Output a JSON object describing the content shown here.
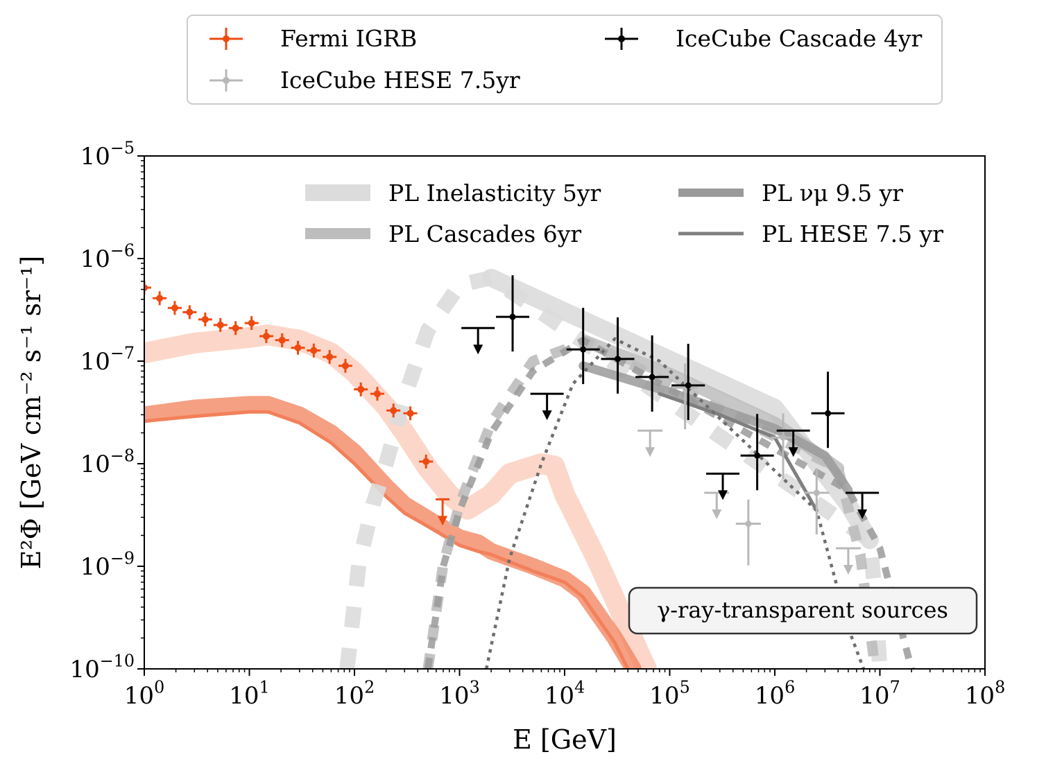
{
  "chart_data": {
    "type": "line",
    "xscale": "log",
    "yscale": "log",
    "xlabel": "E [GeV]",
    "ylabel": "E²Φ [GeV cm⁻² s⁻¹ sr⁻¹]",
    "xlim": [
      1,
      100000000
    ],
    "ylim": [
      1e-10,
      1e-05
    ],
    "x_ticks": [
      {
        "base": "10",
        "exp": "0"
      },
      {
        "base": "10",
        "exp": "1"
      },
      {
        "base": "10",
        "exp": "2"
      },
      {
        "base": "10",
        "exp": "3"
      },
      {
        "base": "10",
        "exp": "4"
      },
      {
        "base": "10",
        "exp": "5"
      },
      {
        "base": "10",
        "exp": "6"
      },
      {
        "base": "10",
        "exp": "7"
      },
      {
        "base": "10",
        "exp": "8"
      }
    ],
    "y_ticks": [
      {
        "base": "10",
        "exp": "−10"
      },
      {
        "base": "10",
        "exp": "−9"
      },
      {
        "base": "10",
        "exp": "−8"
      },
      {
        "base": "10",
        "exp": "−7"
      },
      {
        "base": "10",
        "exp": "−6"
      },
      {
        "base": "10",
        "exp": "−5"
      }
    ],
    "annotation": "γ-ray-transparent sources",
    "colors": {
      "fermi": "#ee4a10",
      "hese_points": "#b8b8b8",
      "cascade_points": "#000000",
      "pl_inelasticity": "#dcdcdc",
      "pl_cascades": "#bdbdbd",
      "pl_numu": "#9a9a9a",
      "pl_hese": "#7f7f7f",
      "nu_dotted": "#6e6e6e",
      "gamma_dark": "#f2805a",
      "gamma_light": "#fcd0c0"
    },
    "outer_legend": [
      {
        "label": "Fermi IGRB",
        "color": "#ee4a10"
      },
      {
        "label": "IceCube Cascade 4yr",
        "color": "#000000"
      },
      {
        "label": "IceCube HESE 7.5yr",
        "color": "#b8b8b8"
      }
    ],
    "inner_legend": [
      {
        "label": "PL Inelasticity 5yr",
        "color": "#dcdcdc"
      },
      {
        "label": "PL νμ 9.5 yr",
        "color": "#9a9a9a"
      },
      {
        "label": "PL Cascades 6yr",
        "color": "#bdbdbd"
      },
      {
        "label": "PL HESE 7.5 yr",
        "color": "#7f7f7f"
      }
    ],
    "series": [
      {
        "name": "Fermi IGRB",
        "kind": "points",
        "x": [
          1.0,
          1.4,
          1.95,
          2.7,
          3.8,
          5.3,
          7.4,
          10.5,
          14.5,
          20.5,
          29,
          41,
          58,
          82,
          115,
          165,
          235,
          340,
          480,
          690
        ],
        "y": [
          5.2e-07,
          4.1e-07,
          3.3e-07,
          3e-07,
          2.55e-07,
          2.25e-07,
          2.1e-07,
          2.35e-07,
          1.75e-07,
          1.6e-07,
          1.35e-07,
          1.27e-07,
          1.1e-07,
          9e-08,
          5.3e-08,
          4.8e-08,
          3.3e-08,
          3.1e-08,
          1.05e-08,
          4.5e-09
        ],
        "upper_limit": [
          false,
          false,
          false,
          false,
          false,
          false,
          false,
          false,
          false,
          false,
          false,
          false,
          false,
          false,
          false,
          false,
          false,
          false,
          false,
          true
        ]
      },
      {
        "name": "IceCube Cascade 4yr",
        "kind": "points",
        "x": [
          1500,
          3200,
          6800,
          15000,
          32000,
          68000,
          150000,
          320000,
          680000,
          1500000,
          3200000,
          6800000
        ],
        "y": [
          2.1e-07,
          2.7e-07,
          4.8e-08,
          1.3e-07,
          1.05e-07,
          7e-08,
          5.8e-08,
          8e-09,
          1.2e-08,
          2.1e-08,
          3.1e-08,
          5.2e-09
        ],
        "upper_limit": [
          true,
          false,
          true,
          false,
          false,
          false,
          false,
          true,
          false,
          true,
          false,
          true
        ]
      },
      {
        "name": "IceCube HESE 7.5yr",
        "kind": "points",
        "x": [
          65000,
          140000,
          280000,
          560000,
          1200000,
          2500000,
          5000000
        ],
        "y": [
          2.1e-08,
          5.5e-08,
          5.2e-09,
          2.6e-09,
          1.8e-08,
          5.2e-09,
          1.5e-09
        ],
        "upper_limit": [
          true,
          false,
          true,
          false,
          false,
          false,
          true
        ]
      },
      {
        "name": "PL Inelasticity 5yr",
        "kind": "band",
        "style": "solid",
        "x": [
          2000,
          1000000,
          5000000,
          8000000
        ],
        "y": [
          6.5e-07,
          3.5e-08,
          4e-09,
          1.8e-09
        ]
      },
      {
        "name": "PL Inelasticity 5yr (extrapolated)",
        "kind": "band",
        "style": "dashed",
        "x": [
          85,
          110,
          150,
          200,
          300,
          500,
          1000,
          2000,
          8000000,
          9000000,
          10000000
        ],
        "y": [
          1e-10,
          1.05e-09,
          4e-09,
          1e-08,
          4.5e-08,
          2e-07,
          5.5e-07,
          6.5e-07,
          1.8e-09,
          5.5e-10,
          1e-10
        ]
      },
      {
        "name": "PL Cascades 6yr",
        "kind": "band",
        "style": "solid",
        "x": [
          16000,
          100000,
          1000000,
          4000000
        ],
        "y": [
          1.55e-07,
          7.5e-08,
          2.5e-08,
          9e-09
        ]
      },
      {
        "name": "PL Cascades 6yr (extrapolated)",
        "kind": "band",
        "style": "dashed",
        "x": [
          500,
          700,
          1000,
          2000,
          5000,
          16000,
          4000000,
          6500000,
          9000000
        ],
        "y": [
          1e-10,
          1.05e-09,
          4e-09,
          2.5e-08,
          1e-07,
          1.55e-07,
          9e-09,
          1.3e-09,
          1e-10
        ]
      },
      {
        "name": "PL νμ 9.5 yr",
        "kind": "band",
        "style": "solid",
        "x": [
          15000,
          100000,
          1000000,
          3000000,
          5000000
        ],
        "y": [
          9e-08,
          5e-08,
          2.2e-08,
          1.2e-08,
          5.5e-09
        ]
      },
      {
        "name": "PL νμ 9.5 yr (extrapolated)",
        "kind": "band",
        "style": "dashed",
        "x": [
          500,
          700,
          1000,
          2000,
          5000,
          15000,
          5000000,
          10000000,
          20000000
        ],
        "y": [
          1e-10,
          1e-09,
          3.5e-09,
          2e-08,
          8e-08,
          1.6e-07,
          5.5e-09,
          1.5e-09,
          1e-10
        ]
      },
      {
        "name": "PL HESE 7.5 yr",
        "kind": "line",
        "style": "solid",
        "x": [
          80000,
          300000,
          1000000,
          2500000
        ],
        "y": [
          4.8e-08,
          3e-08,
          1.8e-08,
          3.5e-09
        ]
      },
      {
        "name": "PL HESE 7.5 yr (extrapolated)",
        "kind": "line",
        "style": "dotted",
        "x": [
          1800,
          3000,
          6000,
          12000,
          30000,
          80000,
          2500000,
          5000000,
          7000000
        ],
        "y": [
          1e-10,
          1.2e-09,
          1e-08,
          6e-08,
          1.65e-07,
          1e-07,
          3.5e-09,
          2.5e-10,
          1e-10
        ]
      },
      {
        "name": "Gamma-ray cascade (dark band)",
        "kind": "band",
        "style": "solid",
        "x": [
          1,
          3,
          10,
          15,
          30,
          60,
          100,
          200,
          300,
          600,
          1000,
          1500,
          2000,
          5000,
          10000,
          15000,
          30000,
          45000
        ],
        "y": [
          3e-08,
          3.5e-08,
          3.8e-08,
          3.8e-08,
          3e-08,
          2e-08,
          1.3e-08,
          6e-09,
          4e-09,
          2.6e-09,
          1.9e-09,
          1.7e-09,
          1.4e-09,
          1e-09,
          7.5e-10,
          5.5e-10,
          2e-10,
          1e-10
        ]
      },
      {
        "name": "Gamma-ray cascade (dark line)",
        "kind": "line",
        "style": "solid",
        "x": [
          1,
          3,
          10,
          15,
          30,
          60,
          100,
          200,
          300,
          600,
          1000,
          1500,
          2000,
          5000,
          10000,
          15000,
          30000,
          40000
        ],
        "y": [
          2.6e-08,
          2.9e-08,
          3.2e-08,
          3.2e-08,
          2.5e-08,
          1.6e-08,
          1e-08,
          4.8e-09,
          3.3e-09,
          2.2e-09,
          1.6e-09,
          1.4e-09,
          1.3e-09,
          9e-10,
          7e-10,
          5e-10,
          1.8e-10,
          1e-10
        ]
      },
      {
        "name": "Gamma-ray cascade (light band)",
        "kind": "band",
        "style": "solid",
        "x": [
          1,
          3,
          10,
          15,
          30,
          60,
          100,
          200,
          300,
          500,
          800,
          1200,
          2000,
          3000,
          6000,
          8000,
          10000,
          20000,
          40000,
          60000
        ],
        "y": [
          1.2e-07,
          1.5e-07,
          1.7e-07,
          1.8e-07,
          1.6e-07,
          1.2e-07,
          7.8e-08,
          3.6e-08,
          2e-08,
          9e-09,
          5e-09,
          3.6e-09,
          5e-09,
          8e-09,
          1e-08,
          9.5e-09,
          5e-09,
          1.2e-09,
          2.5e-10,
          1e-10
        ]
      }
    ]
  }
}
